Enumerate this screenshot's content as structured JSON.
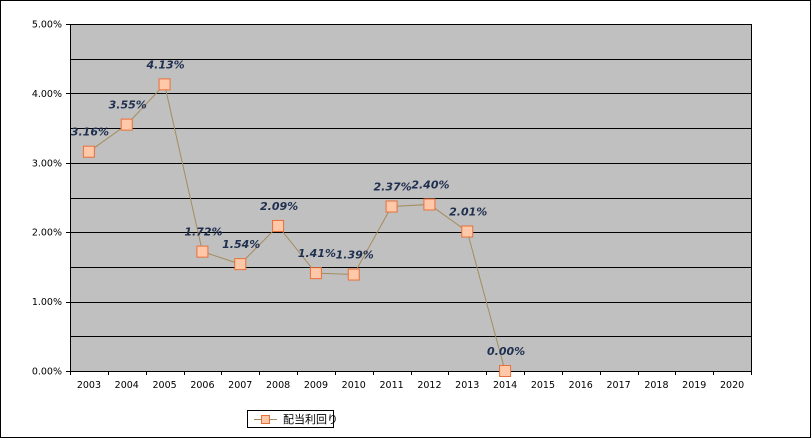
{
  "chart_data": {
    "type": "line",
    "categories": [
      "2003",
      "2004",
      "2005",
      "2006",
      "2007",
      "2008",
      "2009",
      "2010",
      "2011",
      "2012",
      "2013",
      "2014",
      "2015",
      "2016",
      "2017",
      "2018",
      "2019",
      "2020"
    ],
    "series": [
      {
        "name": "配当利回り",
        "values": [
          3.16,
          3.55,
          4.13,
          1.72,
          1.54,
          2.09,
          1.41,
          1.39,
          2.37,
          2.4,
          2.01,
          0.0,
          null,
          null,
          null,
          null,
          null,
          null
        ],
        "data_labels": [
          "3.16%",
          "3.55%",
          "4.13%",
          "1.72%",
          "1.54%",
          "2.09%",
          "1.41%",
          "1.39%",
          "2.37%",
          "2.40%",
          "2.01%",
          "0.00%",
          null,
          null,
          null,
          null,
          null,
          null
        ]
      }
    ],
    "ylim": [
      0,
      5
    ],
    "yticks": [
      0,
      1,
      2,
      3,
      4,
      5
    ],
    "ytick_labels": [
      "0.00%",
      "1.00%",
      "2.00%",
      "3.00%",
      "4.00%",
      "5.00%"
    ],
    "grid": true,
    "grid_step": 0.5,
    "legend": "bottom-left"
  },
  "colors": {
    "chart_bg": "#FFFFFF",
    "plot_bg": "#C0C0C0",
    "gridline": "#000000",
    "axis": "#000000",
    "line": "#A48C5C",
    "marker_fill": "#FFC8A8",
    "marker_stroke": "#E8703C",
    "data_label": "#1F2F4F"
  }
}
